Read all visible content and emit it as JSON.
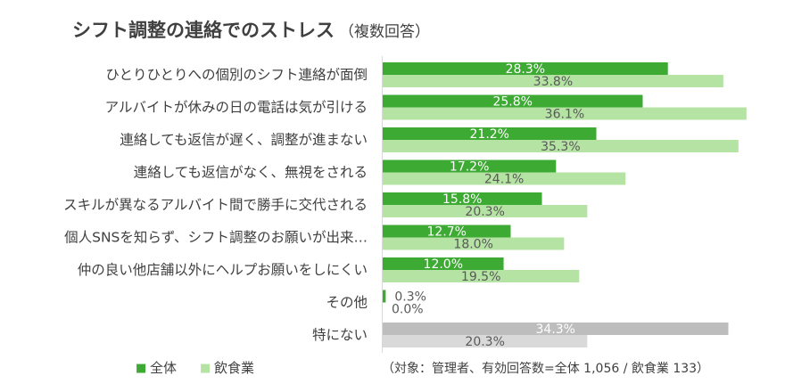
{
  "chart_data": {
    "type": "bar",
    "orientation": "horizontal",
    "title": "シフト調整の連絡でのストレス",
    "subtitle": "（複数回答）",
    "categories": [
      "ひとりひとりへの個別のシフト連絡が面倒",
      "アルバイトが休みの日の電話は気が引ける",
      "連絡しても返信が遅く、調整が進まない",
      "連絡しても返信がなく、無視をされる",
      "スキルが異なるアルバイト間で勝手に交代される",
      "個人SNSを知らず、シフト調整のお願いが出来…",
      "仲の良い他店舗以外にヘルプお願いをしにくい",
      "その他",
      "特にない"
    ],
    "series": [
      {
        "name": "全体",
        "values": [
          28.3,
          25.8,
          21.2,
          17.2,
          15.8,
          12.7,
          12.0,
          0.3,
          34.3
        ],
        "color": "#3daa33",
        "color_last": "#bdbdbd"
      },
      {
        "name": "飲食業",
        "values": [
          33.8,
          36.1,
          35.3,
          24.1,
          20.3,
          18.0,
          19.5,
          0.0,
          20.3
        ],
        "color": "#b5e3a4",
        "color_last": "#d9d9d9"
      }
    ],
    "value_labels": [
      [
        "28.3%",
        "25.8%",
        "21.2%",
        "17.2%",
        "15.8%",
        "12.7%",
        "12.0%",
        "0.3%",
        "34.3%"
      ],
      [
        "33.8%",
        "36.1%",
        "35.3%",
        "24.1%",
        "20.3%",
        "18.0%",
        "19.5%",
        "0.0%",
        "20.3%"
      ]
    ],
    "xlim": [
      0,
      37
    ],
    "grid": false,
    "legend": {
      "position": "bottom-left",
      "marker": "■"
    },
    "note": "（対象：管理者、有効回答数=全体 1,056 / 飲食業 133）"
  }
}
